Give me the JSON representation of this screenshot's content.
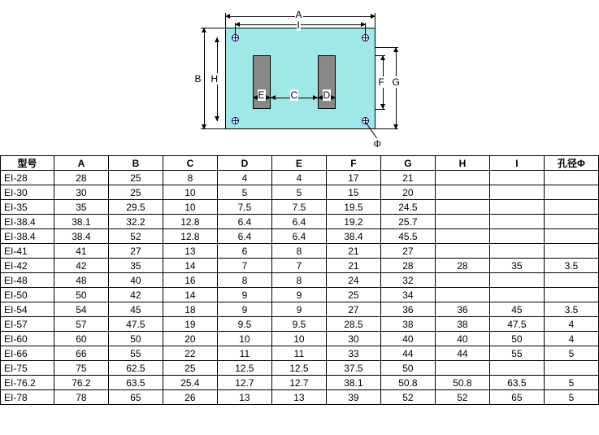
{
  "diagram": {
    "labels": {
      "A": "A",
      "B": "B",
      "C": "C",
      "D": "D",
      "E": "E",
      "F": "F",
      "G": "G",
      "H": "H",
      "I": "I",
      "phi": "Φ"
    },
    "colors": {
      "body": "#a0e8e8",
      "leg": "#888888",
      "line": "#000000",
      "hole": "#000066"
    }
  },
  "table": {
    "columns": [
      "型号",
      "A",
      "B",
      "C",
      "D",
      "E",
      "F",
      "G",
      "H",
      "I",
      "孔径Φ"
    ],
    "rows": [
      [
        "EI-28",
        "28",
        "25",
        "8",
        "4",
        "4",
        "17",
        "21",
        "",
        "",
        ""
      ],
      [
        "EI-30",
        "30",
        "25",
        "10",
        "5",
        "5",
        "15",
        "20",
        "",
        "",
        ""
      ],
      [
        "EI-35",
        "35",
        "29.5",
        "10",
        "7.5",
        "7.5",
        "19.5",
        "24.5",
        "",
        "",
        ""
      ],
      [
        "EI-38.4",
        "38.1",
        "32.2",
        "12.8",
        "6.4",
        "6.4",
        "19.2",
        "25.7",
        "",
        "",
        ""
      ],
      [
        "EI-38.4",
        "38.4",
        "52",
        "12.8",
        "6.4",
        "6.4",
        "38.4",
        "45.5",
        "",
        "",
        ""
      ],
      [
        "EI-41",
        "41",
        "27",
        "13",
        "6",
        "8",
        "21",
        "27",
        "",
        "",
        ""
      ],
      [
        "EI-42",
        "42",
        "35",
        "14",
        "7",
        "7",
        "21",
        "28",
        "28",
        "35",
        "3.5"
      ],
      [
        "EI-48",
        "48",
        "40",
        "16",
        "8",
        "8",
        "24",
        "32",
        "",
        "",
        ""
      ],
      [
        "EI-50",
        "50",
        "42",
        "14",
        "9",
        "9",
        "25",
        "34",
        "",
        "",
        ""
      ],
      [
        "EI-54",
        "54",
        "45",
        "18",
        "9",
        "9",
        "27",
        "36",
        "36",
        "45",
        "3.5"
      ],
      [
        "EI-57",
        "57",
        "47.5",
        "19",
        "9.5",
        "9.5",
        "28.5",
        "38",
        "38",
        "47.5",
        "4"
      ],
      [
        "EI-60",
        "60",
        "50",
        "20",
        "10",
        "10",
        "30",
        "40",
        "40",
        "50",
        "4"
      ],
      [
        "EI-66",
        "66",
        "55",
        "22",
        "11",
        "11",
        "33",
        "44",
        "44",
        "55",
        "5"
      ],
      [
        "EI-75",
        "75",
        "62.5",
        "25",
        "12.5",
        "12.5",
        "37.5",
        "50",
        "",
        "",
        ""
      ],
      [
        "EI-76.2",
        "76.2",
        "63.5",
        "25.4",
        "12.7",
        "12.7",
        "38.1",
        "50.8",
        "50.8",
        "63.5",
        "5"
      ],
      [
        "EI-78",
        "78",
        "65",
        "26",
        "13",
        "13",
        "39",
        "52",
        "52",
        "65",
        "5"
      ]
    ]
  }
}
